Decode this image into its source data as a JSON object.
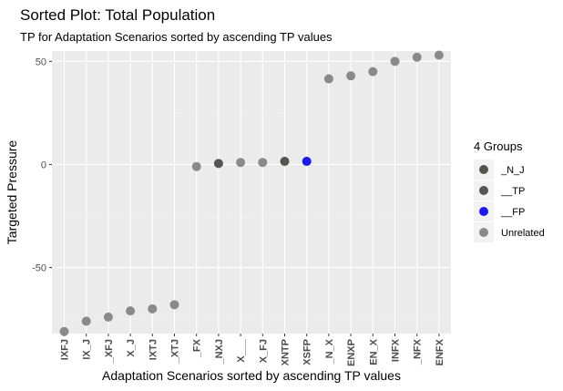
{
  "chart_data": {
    "type": "scatter",
    "title": "Sorted Plot: Total Population",
    "subtitle": "TP for Adaptation Scenarios sorted by ascending TP values",
    "xlabel": "Adaptation Scenarios sorted by ascending TP values",
    "ylabel": "Targeted Pressure",
    "ylim": [
      -82,
      55
    ],
    "yticks": [
      50,
      0,
      -50
    ],
    "grid": true,
    "legend": {
      "title": "4 Groups",
      "placement": "right",
      "items": [
        {
          "label": "_N_J",
          "color": "#55554f"
        },
        {
          "label": "__TP",
          "color": "#55554f"
        },
        {
          "label": "__FP",
          "color": "#1a1aee"
        },
        {
          "label": "Unrelated",
          "color": "#8a8a8a"
        }
      ]
    },
    "categories": [
      "IXFJ",
      "IX_J",
      "_XFJ",
      "X_J",
      "IXTJ",
      "_XTJ",
      "_FX",
      "_NXJ",
      "X___",
      "X_FJ",
      "XNTP",
      "XSFP",
      "_N_X",
      "ENXP",
      "EN_X",
      "INFX",
      "_NFX",
      "ENFX"
    ],
    "values": [
      -81,
      -76,
      -74,
      -71,
      -70,
      -68,
      -1,
      0.5,
      1,
      1,
      1.5,
      1.5,
      41.5,
      43,
      45,
      50,
      52,
      53
    ],
    "groups": [
      "Unrelated",
      "Unrelated",
      "Unrelated",
      "Unrelated",
      "Unrelated",
      "Unrelated",
      "Unrelated",
      "_N_J",
      "Unrelated",
      "Unrelated",
      "__TP",
      "__FP",
      "Unrelated",
      "Unrelated",
      "Unrelated",
      "Unrelated",
      "Unrelated",
      "Unrelated"
    ]
  }
}
